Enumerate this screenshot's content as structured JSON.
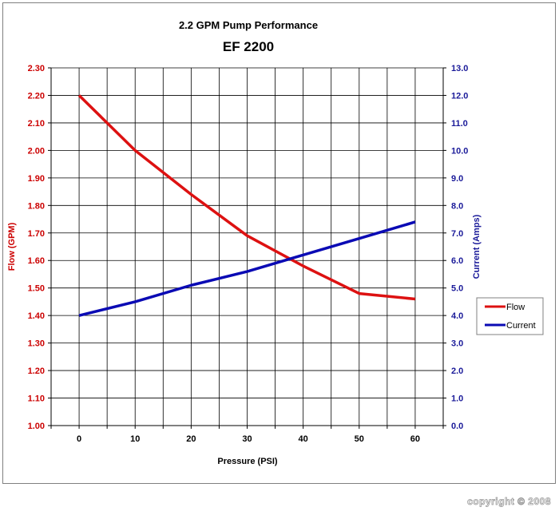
{
  "chart_data": {
    "type": "line",
    "title": "2.2 GPM Pump Performance",
    "subtitle": "EF 2200",
    "xlabel": "Pressure (PSI)",
    "ylabel": "Flow (GPM)",
    "y2label": "Current (Amps)",
    "x": [
      0,
      10,
      20,
      30,
      40,
      50,
      60
    ],
    "xlim": [
      -5,
      65
    ],
    "ylim": [
      1.0,
      2.3
    ],
    "y2lim": [
      0.0,
      13.0
    ],
    "yticks": [
      "1.00",
      "1.10",
      "1.20",
      "1.30",
      "1.40",
      "1.50",
      "1.60",
      "1.70",
      "1.80",
      "1.90",
      "2.00",
      "2.10",
      "2.20",
      "2.30"
    ],
    "y2ticks": [
      "0.0",
      "1.0",
      "2.0",
      "3.0",
      "4.0",
      "5.0",
      "6.0",
      "7.0",
      "8.0",
      "9.0",
      "10.0",
      "11.0",
      "12.0",
      "13.0"
    ],
    "xticks": [
      "0",
      "10",
      "20",
      "30",
      "40",
      "50",
      "60"
    ],
    "grid": true,
    "legend": "right",
    "series": [
      {
        "name": "Flow",
        "axis": "left",
        "color": "#dd1111",
        "values": [
          2.2,
          2.0,
          1.84,
          1.69,
          1.58,
          1.48,
          1.46
        ]
      },
      {
        "name": "Current",
        "axis": "right",
        "color": "#0a0ab4",
        "values": [
          4.0,
          4.5,
          5.1,
          5.6,
          6.2,
          6.8,
          7.4
        ]
      }
    ]
  },
  "copyright": "copyright © 2008"
}
